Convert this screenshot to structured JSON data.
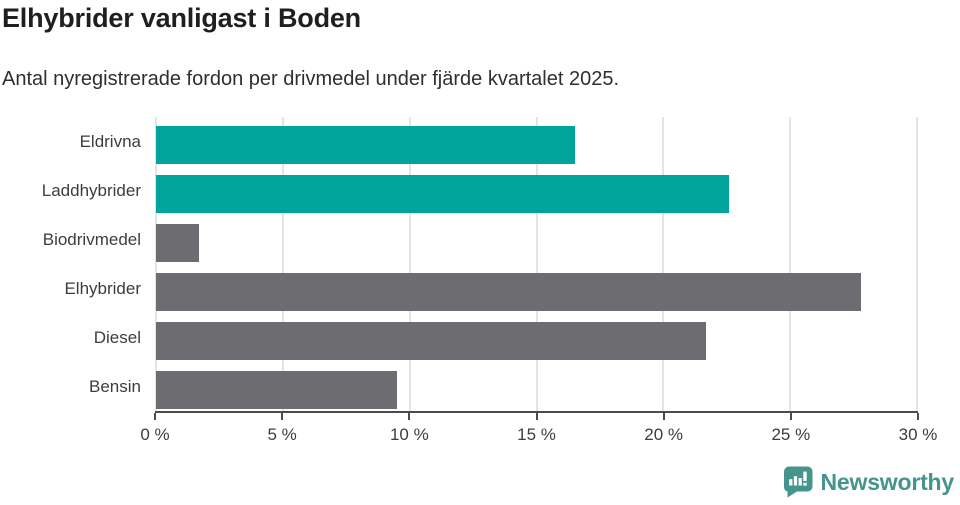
{
  "header": {
    "title": "Elhybrider vanligast i Boden",
    "subtitle": "Antal nyregistrerade fordon per drivmedel under fjärde kvartalet 2025."
  },
  "chart_data": {
    "type": "bar",
    "orientation": "horizontal",
    "title": "Elhybrider vanligast i Boden",
    "subtitle": "Antal nyregistrerade fordon per drivmedel under fjärde kvartalet 2025.",
    "categories": [
      "Eldrivna",
      "Laddhybrider",
      "Biodrivmedel",
      "Elhybrider",
      "Diesel",
      "Bensin"
    ],
    "values": [
      16.5,
      22.6,
      1.7,
      27.8,
      21.7,
      9.5
    ],
    "unit": "%",
    "xlabel": "",
    "ylabel": "",
    "xlim": [
      0,
      30
    ],
    "ticks": [
      0,
      5,
      10,
      15,
      20,
      25,
      30
    ],
    "tick_labels": [
      "0 %",
      "5 %",
      "10 %",
      "15 %",
      "20 %",
      "25 %",
      "30 %"
    ],
    "bar_colors": [
      "#00a49b",
      "#00a49b",
      "#6c6c71",
      "#6c6c71",
      "#6c6c71",
      "#6c6c71"
    ],
    "grid": "vertical",
    "legend": "none"
  },
  "colors": {
    "highlight": "#00a49b",
    "neutral": "#6c6c71",
    "gridline": "#e4e4e4",
    "axis": "#4c4c4c",
    "brand": "#45948d"
  },
  "footer": {
    "brand": "Newsworthy"
  }
}
